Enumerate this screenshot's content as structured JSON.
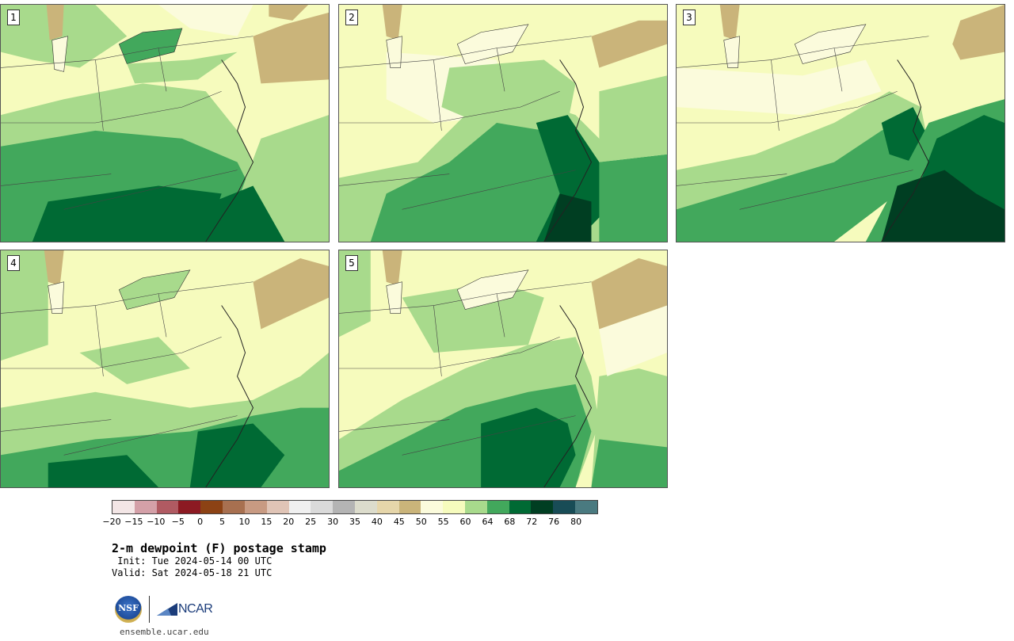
{
  "panels": [
    {
      "label": "1"
    },
    {
      "label": "2"
    },
    {
      "label": "3"
    },
    {
      "label": "4"
    },
    {
      "label": "5"
    }
  ],
  "colorbar": {
    "colors": [
      "#f3e6e6",
      "#d4a0a8",
      "#b05a62",
      "#8c1a22",
      "#8c4214",
      "#a87050",
      "#c89a82",
      "#e0c4b6",
      "#f0f0f0",
      "#dadada",
      "#b4b4b4",
      "#dcdccc",
      "#e6d6aa",
      "#cab47a",
      "#fbfbdc",
      "#f6fbbd",
      "#a8da8c",
      "#42a85c",
      "#006a34",
      "#003e22",
      "#184c56",
      "#4a7a80"
    ],
    "tick_labels": [
      "−20",
      "−15",
      "−10",
      "−5",
      "0",
      "5",
      "10",
      "15",
      "20",
      "25",
      "30",
      "35",
      "40",
      "45",
      "50",
      "55",
      "60",
      "64",
      "68",
      "72",
      "76",
      "80"
    ]
  },
  "title": "2-m dewpoint (F) postage stamp",
  "init": " Init: Tue 2024-05-14 00 UTC",
  "valid": "Valid: Sat 2024-05-18 21 UTC",
  "logo": {
    "nsf": "NSF",
    "ncar": "NCAR"
  },
  "site": "ensemble.ucar.edu"
}
